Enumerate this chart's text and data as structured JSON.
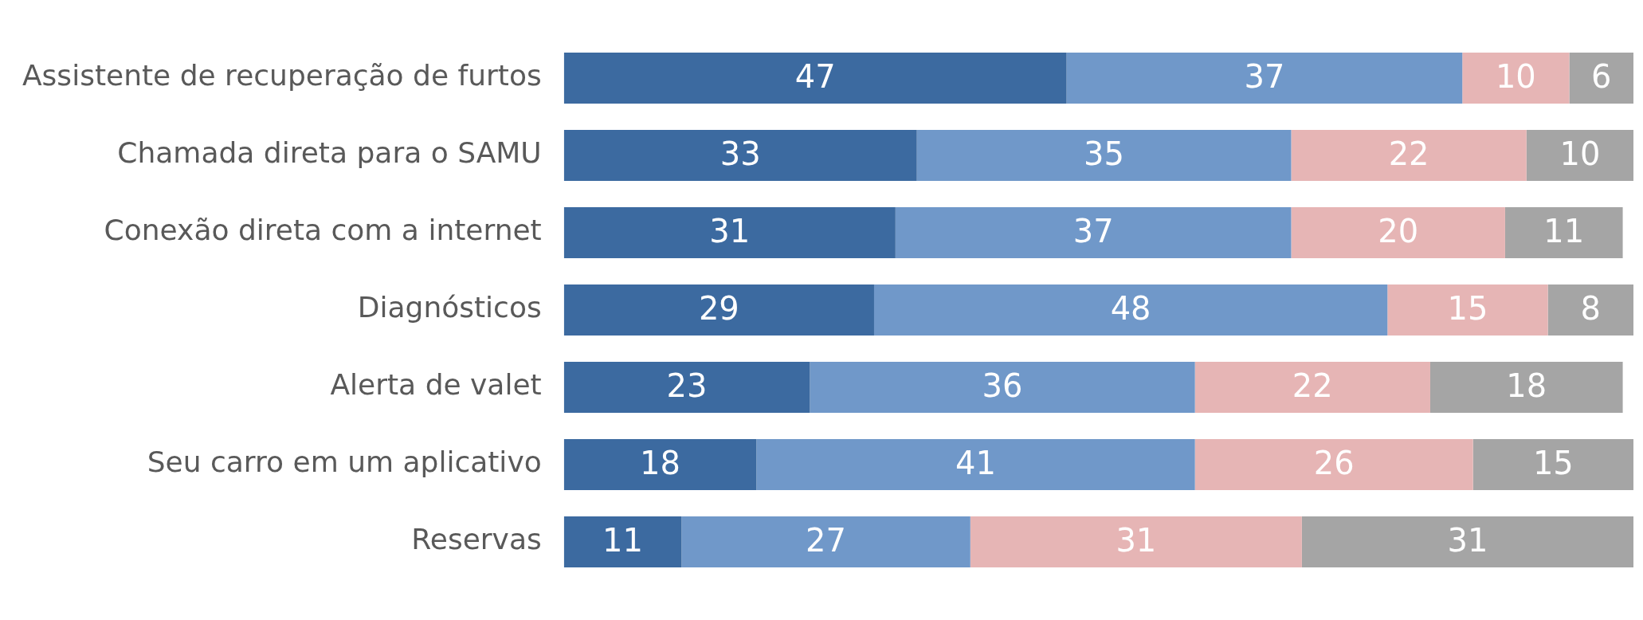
{
  "chart_data": {
    "type": "bar",
    "orientation": "horizontal",
    "stacked": true,
    "data_labels": true,
    "grid": false,
    "legend": false,
    "categories": [
      "Assistente de recuperação de furtos",
      "Chamada direta para o SAMU",
      "Conexão direta com a internet",
      "Diagnósticos",
      "Alerta de valet",
      "Seu carro em um aplicativo",
      "Reservas"
    ],
    "series": [
      {
        "color": "#3c6aa0",
        "values": [
          47,
          33,
          31,
          29,
          23,
          18,
          11
        ]
      },
      {
        "color": "#7098c9",
        "values": [
          37,
          35,
          37,
          48,
          36,
          41,
          27
        ]
      },
      {
        "color": "#e6b5b5",
        "values": [
          10,
          22,
          20,
          15,
          22,
          26,
          31
        ]
      },
      {
        "color": "#a5a5a5",
        "values": [
          6,
          10,
          11,
          8,
          18,
          15,
          31
        ]
      }
    ]
  }
}
